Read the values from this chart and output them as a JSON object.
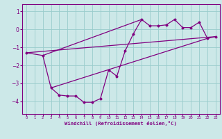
{
  "title": "",
  "xlabel": "Windchill (Refroidissement éolien,°C)",
  "background_color": "#cce8e8",
  "line_color": "#800080",
  "grid_color": "#99cccc",
  "xlim": [
    -0.5,
    23.5
  ],
  "ylim": [
    -4.7,
    1.4
  ],
  "yticks": [
    1,
    0,
    -1,
    -2,
    -3,
    -4
  ],
  "xticks": [
    0,
    1,
    2,
    3,
    4,
    5,
    6,
    7,
    8,
    9,
    10,
    11,
    12,
    13,
    14,
    15,
    16,
    17,
    18,
    19,
    20,
    21,
    22,
    23
  ],
  "series": [
    [
      0,
      -1.3
    ],
    [
      2,
      -1.45
    ],
    [
      3,
      -3.25
    ],
    [
      4,
      -3.65
    ],
    [
      5,
      -3.7
    ],
    [
      6,
      -3.7
    ],
    [
      7,
      -4.05
    ],
    [
      8,
      -4.05
    ],
    [
      9,
      -3.85
    ],
    [
      10,
      -2.25
    ],
    [
      11,
      -2.6
    ],
    [
      12,
      -1.2
    ],
    [
      13,
      -0.25
    ],
    [
      14,
      0.55
    ],
    [
      15,
      0.2
    ],
    [
      16,
      0.2
    ],
    [
      17,
      0.25
    ],
    [
      18,
      0.55
    ],
    [
      19,
      0.1
    ],
    [
      20,
      0.1
    ],
    [
      21,
      0.4
    ],
    [
      22,
      -0.5
    ],
    [
      23,
      -0.4
    ]
  ],
  "line1": [
    [
      0,
      -1.3
    ],
    [
      23,
      -0.4
    ]
  ],
  "line2": [
    [
      2,
      -1.45
    ],
    [
      14,
      0.55
    ]
  ],
  "line3": [
    [
      3,
      -3.25
    ],
    [
      22,
      -0.5
    ]
  ]
}
